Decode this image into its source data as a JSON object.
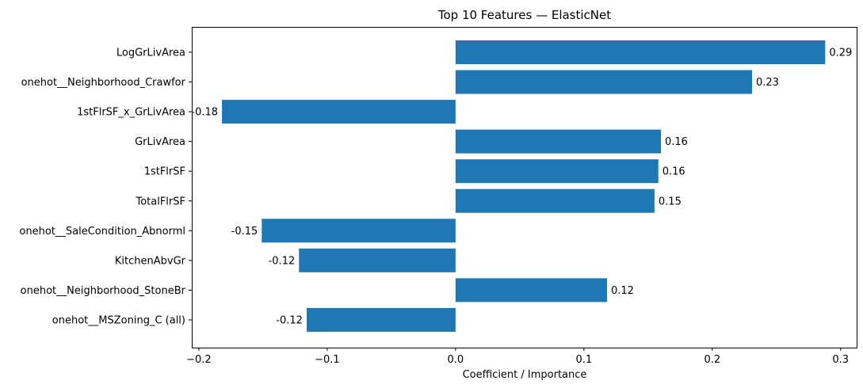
{
  "chart_data": {
    "type": "bar",
    "orientation": "horizontal",
    "title": "Top 10 Features — ElasticNet",
    "xlabel": "Coefficient / Importance",
    "ylabel": "",
    "xlim": [
      -0.2055,
      0.3125
    ],
    "x_ticks": [
      -0.2,
      -0.1,
      0.0,
      0.1,
      0.2,
      0.3
    ],
    "x_tick_labels": [
      "−0.2",
      "−0.1",
      "0.0",
      "0.1",
      "0.2",
      "0.3"
    ],
    "grid": false,
    "legend": false,
    "bar_color": "#1f77b4",
    "categories": [
      "LogGrLivArea",
      "onehot__Neighborhood_Crawfor",
      "1stFlrSF_x_GrLivArea",
      "GrLivArea",
      "1stFlrSF",
      "TotalFlrSF",
      "onehot__SaleCondition_Abnorml",
      "KitchenAbvGr",
      "onehot__Neighborhood_StoneBr",
      "onehot__MSZoning_C (all)"
    ],
    "values": [
      0.288,
      0.231,
      -0.182,
      0.16,
      0.158,
      0.155,
      -0.151,
      -0.122,
      0.118,
      -0.116
    ],
    "data_labels": [
      "0.29",
      "0.23",
      "-0.18",
      "0.16",
      "0.16",
      "0.15",
      "-0.15",
      "-0.12",
      "0.12",
      "-0.12"
    ]
  }
}
